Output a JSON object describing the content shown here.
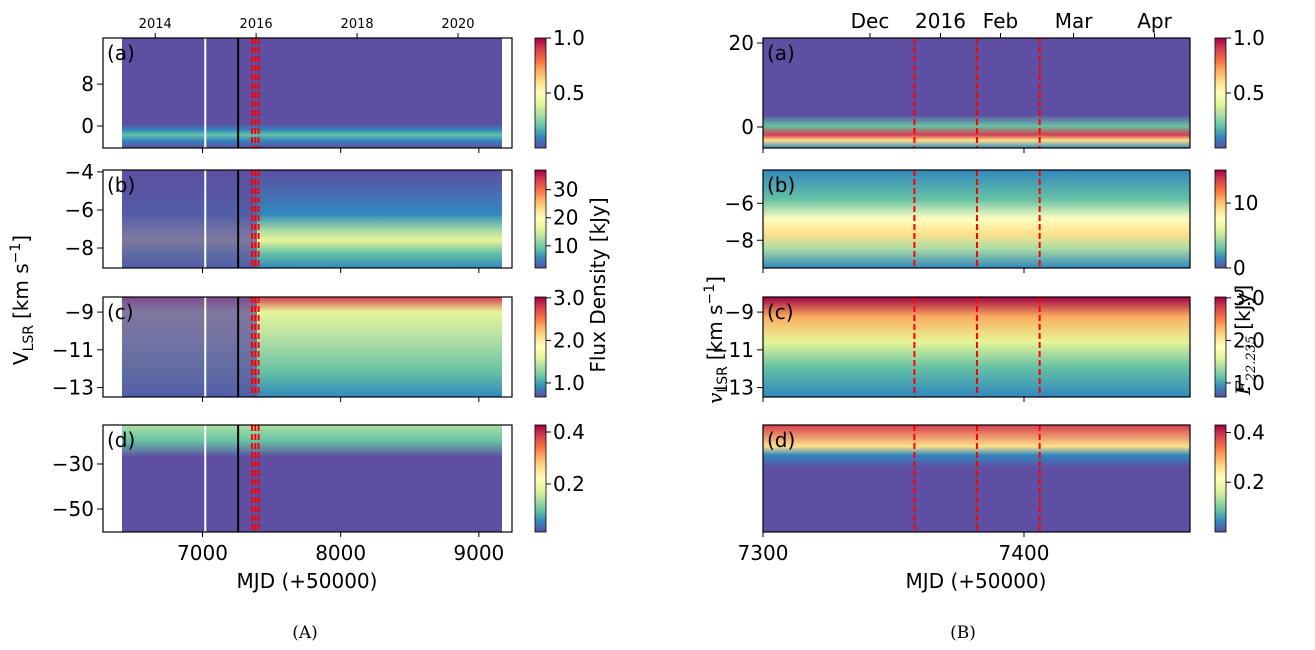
{
  "chart_data": [
    {
      "type": "heatmap",
      "caption": "(A)",
      "xlabel": "MJD (+50000)",
      "ylabel": {
        "base": "V",
        "sub": "LSR",
        "rest": "[km s",
        "sup": "−1",
        "end": "]"
      },
      "colorbar_label": "Flux Density [kJy]",
      "xlim": [
        6280,
        9240
      ],
      "xticks": [
        7000,
        8000,
        9000
      ],
      "top_xticks": [
        {
          "value": 6658,
          "label": "2014"
        },
        {
          "value": 7388,
          "label": "2016"
        },
        {
          "value": 8119,
          "label": "2018"
        },
        {
          "value": 8849,
          "label": "2020"
        }
      ],
      "vlines": [
        {
          "x": 7020,
          "color": "white",
          "style": "solid"
        },
        {
          "x": 7258,
          "color": "black",
          "style": "solid"
        },
        {
          "x": 7358,
          "color": "red",
          "style": "dashed"
        },
        {
          "x": 7382,
          "color": "red",
          "style": "dashed"
        },
        {
          "x": 7406,
          "color": "red",
          "style": "dashed"
        }
      ],
      "panels": [
        {
          "label": "(a)",
          "ylim": [
            -4.2,
            16.8
          ],
          "yticks": [
            0,
            8
          ],
          "colorbar": {
            "lim": [
              0,
              1
            ],
            "ticks": [
              {
                "value": 1,
                "label": "1.0"
              },
              0.5
            ]
          }
        },
        {
          "label": "(b)",
          "ylim": [
            -9.05,
            -3.9
          ],
          "yticks": [
            {
              "value": -4,
              "label": "−4"
            },
            {
              "value": -6,
              "label": "−6"
            },
            {
              "value": -8,
              "label": "−8"
            }
          ],
          "colorbar": {
            "lim": [
              2.1,
              37
            ],
            "ticks": [
              10,
              20,
              30
            ]
          }
        },
        {
          "label": "(c)",
          "ylim": [
            -13.5,
            -8.2
          ],
          "yticks": [
            {
              "value": -9,
              "label": "−9"
            },
            {
              "value": -11,
              "label": "−11"
            },
            {
              "value": -13,
              "label": "−13"
            }
          ],
          "colorbar": {
            "lim": [
              0.67,
              3.02
            ],
            "ticks": [
              {
                "value": 1,
                "label": "1.0"
              },
              {
                "value": 2,
                "label": "2.0"
              },
              {
                "value": 3,
                "label": "3.0"
              }
            ]
          }
        },
        {
          "label": "(d)",
          "ylim": [
            -60.2,
            -12.7
          ],
          "yticks": [
            {
              "value": -30,
              "label": "−30"
            },
            {
              "value": -50,
              "label": "−50"
            }
          ],
          "colorbar": {
            "lim": [
              0.015,
              0.427
            ],
            "ticks": [
              0.2,
              0.4
            ]
          }
        }
      ]
    },
    {
      "type": "heatmap",
      "caption": "(B)",
      "xlabel": "MJD (+50000)",
      "ylabel": {
        "base": "v",
        "sub": "LSR",
        "rest": "[km s",
        "sup": "−1",
        "end": "]"
      },
      "colorbar_label": {
        "base": "F",
        "sub": "22.235",
        "rest": "[kJy]"
      },
      "xlim": [
        7300,
        7463.6
      ],
      "xticks": [
        7300,
        7400
      ],
      "top_xticks": [
        {
          "value": 7341,
          "label": "Dec"
        },
        {
          "value": 7368,
          "label": "2016"
        },
        {
          "value": 7391,
          "label": "Feb"
        },
        {
          "value": 7419,
          "label": "Mar"
        },
        {
          "value": 7450,
          "label": "Apr"
        }
      ],
      "vlines": [
        {
          "x": 7358,
          "color": "red",
          "style": "dashed"
        },
        {
          "x": 7382,
          "color": "red",
          "style": "dashed"
        },
        {
          "x": 7406,
          "color": "red",
          "style": "dashed"
        }
      ],
      "panels": [
        {
          "label": "(a)",
          "ylim": [
            -5,
            21.2
          ],
          "yticks": [
            0,
            20
          ],
          "colorbar": {
            "lim": [
              0,
              1
            ],
            "ticks": [
              {
                "value": 1,
                "label": "1.0"
              },
              0.5
            ]
          }
        },
        {
          "label": "(b)",
          "ylim": [
            -9.5,
            -4.2
          ],
          "yticks": [
            {
              "value": -6,
              "label": "−6"
            },
            {
              "value": -8,
              "label": "−8"
            }
          ],
          "colorbar": {
            "lim": [
              0,
              15.1
            ],
            "ticks": [
              0,
              10
            ]
          }
        },
        {
          "label": "(c)",
          "ylim": [
            -13.5,
            -8.2
          ],
          "yticks": [
            {
              "value": -9,
              "label": "−9"
            },
            {
              "value": -11,
              "label": "−11"
            },
            {
              "value": -13,
              "label": "−13"
            }
          ],
          "colorbar": {
            "lim": [
              0.67,
              3.02
            ],
            "ticks": [
              {
                "value": 1,
                "label": "1.0"
              },
              {
                "value": 2,
                "label": "2.0"
              },
              {
                "value": 3,
                "label": "3.0"
              }
            ]
          }
        },
        {
          "label": "(d)",
          "ylim": [
            0,
            0.43
          ],
          "yticks": [],
          "colorbar": {
            "lim": [
              0,
              0.43
            ],
            "ticks": [
              0.2,
              0.4
            ]
          }
        }
      ]
    }
  ]
}
